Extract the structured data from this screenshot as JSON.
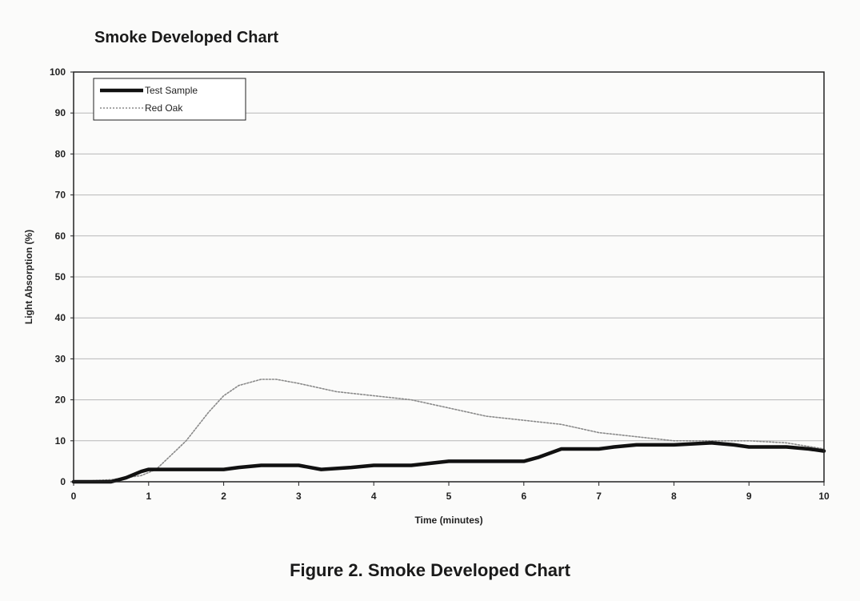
{
  "chart_data": {
    "type": "line",
    "title": "Smoke Developed Chart",
    "caption": "Figure 2.  Smoke Developed Chart",
    "xlabel": "Time (minutes)",
    "ylabel": "Light Absorption  (%)",
    "xlim": [
      0,
      10
    ],
    "ylim": [
      0,
      100
    ],
    "xticks": [
      "0",
      "1",
      "2",
      "3",
      "4",
      "5",
      "6",
      "7",
      "8",
      "9",
      "10"
    ],
    "yticks": [
      "0",
      "10",
      "20",
      "30",
      "40",
      "50",
      "60",
      "70",
      "80",
      "90",
      "100"
    ],
    "grid": "horizontal",
    "legend_position": "top-left",
    "series": [
      {
        "name": "Test Sample",
        "style": "solid-thick",
        "color": "#111111",
        "x": [
          0,
          0.5,
          0.7,
          0.9,
          1.0,
          1.3,
          2.0,
          2.2,
          2.5,
          3.0,
          3.3,
          3.7,
          4.0,
          4.5,
          5.0,
          5.5,
          5.8,
          6.0,
          6.2,
          6.5,
          7.0,
          7.2,
          7.5,
          8.0,
          8.5,
          8.8,
          9.0,
          9.5,
          9.8,
          10.0
        ],
        "y": [
          0,
          0,
          1,
          2.5,
          3,
          3,
          3,
          3.5,
          4,
          4,
          3,
          3.5,
          4,
          4,
          5,
          5,
          5,
          5,
          6,
          8,
          8,
          8.5,
          9,
          9,
          9.5,
          9,
          8.5,
          8.5,
          8,
          7.5
        ]
      },
      {
        "name": "Red Oak",
        "style": "dotted",
        "color": "#8a8a8a",
        "x": [
          0,
          0.5,
          0.9,
          1.1,
          1.5,
          1.8,
          2.0,
          2.2,
          2.5,
          2.7,
          3.0,
          3.5,
          4.0,
          4.5,
          5.0,
          5.5,
          6.0,
          6.5,
          7.0,
          7.5,
          8.0,
          8.5,
          9.0,
          9.5,
          10.0
        ],
        "y": [
          0,
          0.5,
          1.5,
          3,
          10,
          17,
          21,
          23.5,
          25,
          25,
          24,
          22,
          21,
          20,
          18,
          16,
          15,
          14,
          12,
          11,
          10,
          10,
          10,
          9.5,
          8
        ]
      }
    ]
  }
}
